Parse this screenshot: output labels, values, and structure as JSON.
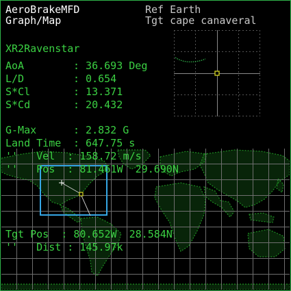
{
  "header": {
    "mfd_name": "AeroBrakeMFD",
    "mode": "Graph/Map",
    "ref": "Ref Earth",
    "tgt": "Tgt cape canaveral"
  },
  "vessel": "XR2Ravenstar",
  "readouts": [
    {
      "label": "AoA      ",
      "value": ": 36.693 Deg"
    },
    {
      "label": "L/D      ",
      "value": ": 0.654"
    },
    {
      "label": "S*Cl     ",
      "value": ": 13.371"
    },
    {
      "label": "S*Cd     ",
      "value": ": 20.432"
    }
  ],
  "gmax": {
    "label": "G-Max    ",
    "value": ": 2.832 G"
  },
  "land_time": {
    "label": "Land Time",
    "value": ": 647.75 s"
  },
  "map_text": {
    "vel": "''   Vel  : 158.72 m/s",
    "pos": "''   Pos  : 81.461W  29.690N",
    "tgt_pos": "Tgt Pos  : 80.652W  28.584N",
    "dist": "''   Dist : 145.97k"
  },
  "colors": {
    "text_white": "#ffffff",
    "text_green": "#3bd143",
    "text_grey": "#c8c8c8",
    "border": "#2fb54a",
    "land": "#1e8e22",
    "grid": "#6f6f6f",
    "view_box": "#35a7e6",
    "marker": "#d8d820"
  }
}
